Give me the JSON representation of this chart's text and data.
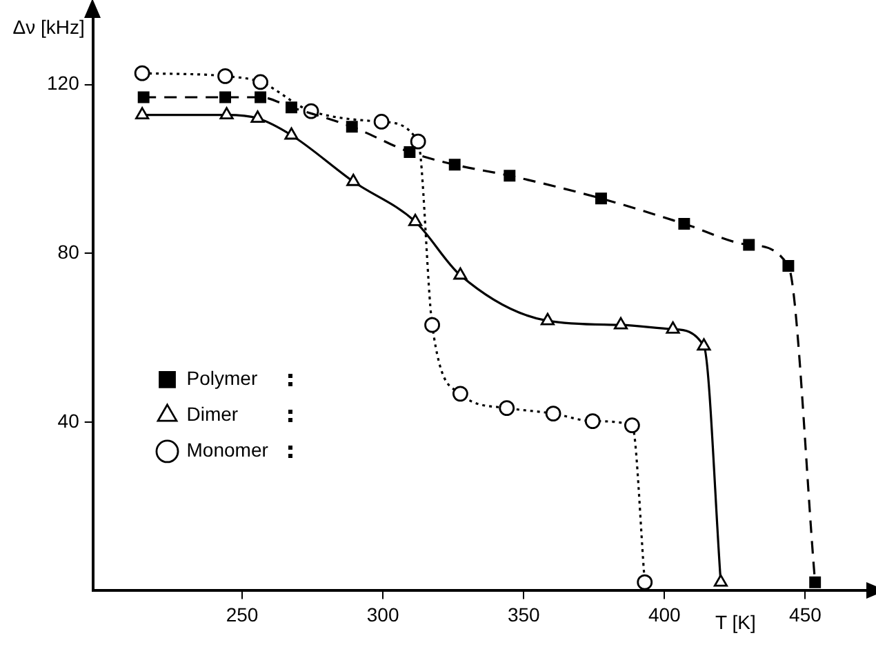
{
  "chart_data": {
    "type": "line",
    "xlabel": "T [K]",
    "ylabel": "Δν [kHz]",
    "xlim": [
      197,
      472
    ],
    "xticks": [
      250,
      300,
      350,
      400,
      450
    ],
    "ylim": [
      0,
      136
    ],
    "yticks": [
      40,
      80,
      120
    ],
    "grid": false,
    "legend": "bottom left",
    "series": [
      {
        "name": "Polymer",
        "color": "#000000",
        "marker": "square",
        "line_style": "dashed",
        "x": [
          215,
          244,
          256.5,
          267.5,
          289,
          309.5,
          325.5,
          345,
          377.5,
          407,
          430,
          444,
          453.5
        ],
        "values": [
          117,
          117,
          117,
          114.6,
          110,
          104,
          101,
          98.4,
          93,
          87,
          82,
          77,
          2
        ]
      },
      {
        "name": "Dimer",
        "color": "#000000",
        "marker": "triangle",
        "line_style": "solid",
        "x": [
          214.5,
          244.5,
          255.5,
          267.5,
          289.5,
          311.5,
          327.5,
          358.5,
          384.5,
          403,
          414,
          420
        ],
        "values": [
          112.8,
          112.8,
          112,
          108,
          97,
          87.5,
          74.8,
          64,
          63,
          62,
          58,
          2
        ]
      },
      {
        "name": "Monomer",
        "color": "#000000",
        "marker": "circle",
        "line_style": "dotted",
        "x": [
          214.5,
          244,
          256.5,
          274.5,
          299.5,
          312.5,
          317.5,
          327.5,
          344,
          360.5,
          374.5,
          388.5,
          393
        ],
        "values": [
          122.7,
          122,
          120.6,
          113.7,
          111.2,
          106.5,
          63,
          46.7,
          43.3,
          42,
          40.2,
          39.2,
          2
        ]
      }
    ]
  }
}
